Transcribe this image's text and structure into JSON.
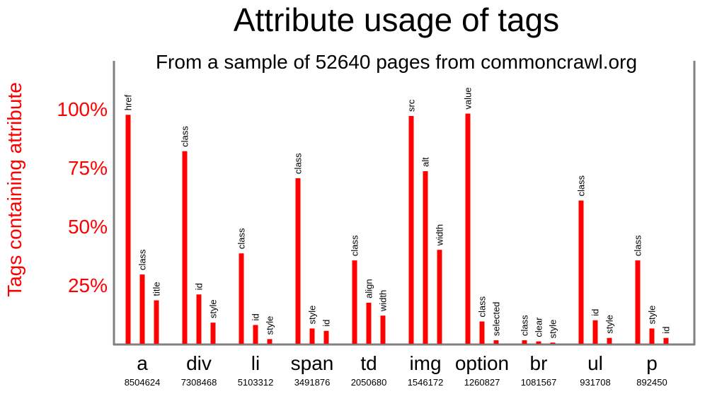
{
  "colors": {
    "bar": "#ff0000",
    "axis": "#808080",
    "ylabel": "#ff0000"
  },
  "chart_data": {
    "type": "bar",
    "title": "Attribute usage of tags",
    "subtitle": "From a sample of 52640 pages from commoncrawl.org",
    "ylabel": "Tags containing attribute",
    "xlabel": "",
    "ylim": [
      0,
      120
    ],
    "yticks": [
      {
        "value": 25,
        "label": "25%"
      },
      {
        "value": 50,
        "label": "50%"
      },
      {
        "value": 75,
        "label": "75%"
      },
      {
        "value": 100,
        "label": "100%"
      }
    ],
    "grid": false,
    "groups": [
      {
        "tag": "a",
        "count": "8504624",
        "attributes": [
          {
            "name": "href",
            "value": 97.5
          },
          {
            "name": "class",
            "value": 29.5
          },
          {
            "name": "title",
            "value": 18.5
          }
        ]
      },
      {
        "tag": "div",
        "count": "7308468",
        "attributes": [
          {
            "name": "class",
            "value": 82
          },
          {
            "name": "id",
            "value": 21
          },
          {
            "name": "style",
            "value": 9
          }
        ]
      },
      {
        "tag": "li",
        "count": "5103312",
        "attributes": [
          {
            "name": "class",
            "value": 38.5
          },
          {
            "name": "id",
            "value": 8
          },
          {
            "name": "style",
            "value": 2
          }
        ]
      },
      {
        "tag": "span",
        "count": "3491876",
        "attributes": [
          {
            "name": "class",
            "value": 70.5
          },
          {
            "name": "style",
            "value": 6.5
          },
          {
            "name": "id",
            "value": 5.5
          }
        ]
      },
      {
        "tag": "td",
        "count": "2050680",
        "attributes": [
          {
            "name": "class",
            "value": 35.5
          },
          {
            "name": "align",
            "value": 17.5
          },
          {
            "name": "width",
            "value": 12
          }
        ]
      },
      {
        "tag": "img",
        "count": "1546172",
        "attributes": [
          {
            "name": "src",
            "value": 97
          },
          {
            "name": "alt",
            "value": 73.5
          },
          {
            "name": "width",
            "value": 40
          }
        ]
      },
      {
        "tag": "option",
        "count": "1260827",
        "attributes": [
          {
            "name": "value",
            "value": 98
          },
          {
            "name": "class",
            "value": 9.5
          },
          {
            "name": "selected",
            "value": 1.5
          }
        ]
      },
      {
        "tag": "br",
        "count": "1081567",
        "attributes": [
          {
            "name": "class",
            "value": 1.5
          },
          {
            "name": "clear",
            "value": 1
          },
          {
            "name": "style",
            "value": 0.5
          }
        ]
      },
      {
        "tag": "ul",
        "count": "931708",
        "attributes": [
          {
            "name": "class",
            "value": 61
          },
          {
            "name": "id",
            "value": 10
          },
          {
            "name": "style",
            "value": 2.5
          }
        ]
      },
      {
        "tag": "p",
        "count": "892450",
        "attributes": [
          {
            "name": "class",
            "value": 35.5
          },
          {
            "name": "style",
            "value": 6.5
          },
          {
            "name": "id",
            "value": 2.5
          }
        ]
      }
    ]
  }
}
